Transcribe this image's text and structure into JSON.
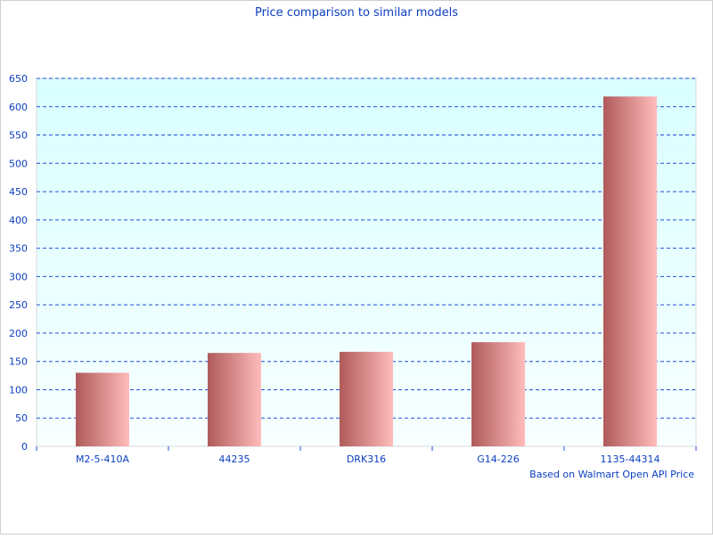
{
  "chart_data": {
    "type": "bar",
    "title": "Price comparison to similar models",
    "categories": [
      "M2-5-410A",
      "44235",
      "DRK316",
      "G14-226",
      "1135-44314"
    ],
    "values": [
      130,
      165,
      167,
      184,
      618
    ],
    "ylim": [
      0,
      650
    ],
    "yticks": [
      0,
      50,
      100,
      150,
      200,
      250,
      300,
      350,
      400,
      450,
      500,
      550,
      600,
      650
    ],
    "xlabel": "",
    "ylabel": "",
    "grid": true,
    "annotation": "Based on Walmart Open API Price",
    "colors": {
      "bar_dark": "#b05a5a",
      "bar_light": "#ffbcbc",
      "grid": "#1f4fd8",
      "text": "#0b3fbf",
      "plot_bg_top": "#d9ffff",
      "plot_bg_bottom": "#f8ffff"
    }
  }
}
